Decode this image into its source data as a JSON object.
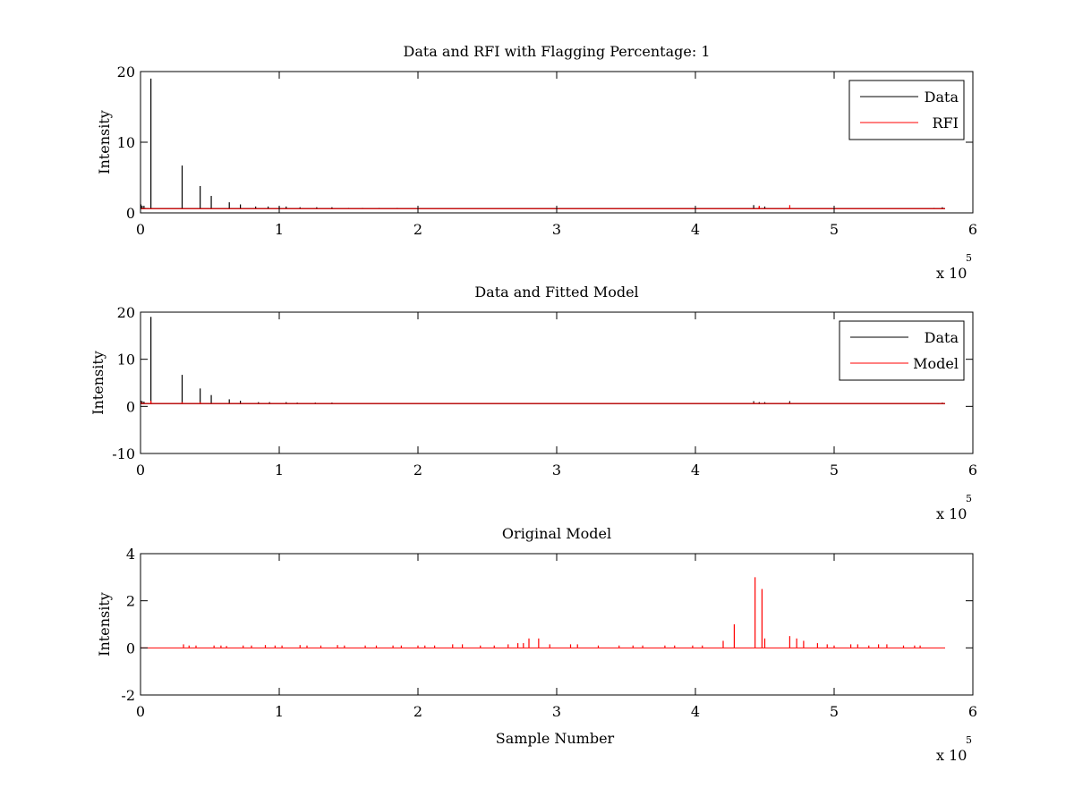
{
  "chart_data": [
    {
      "type": "line",
      "title": "Data and RFI with Flagging Percentage: 1",
      "xlabel": "",
      "ylabel": "Intensity",
      "xlim": [
        0,
        6
      ],
      "ylim": [
        0,
        20
      ],
      "xticks": [
        0,
        1,
        2,
        3,
        4,
        5,
        6
      ],
      "yticks": [
        0,
        10,
        20
      ],
      "x_multiplier": {
        "base": "x 10",
        "exponent": "5"
      },
      "legend": {
        "placement": "top-right",
        "entries": [
          "Data",
          "RFI"
        ]
      },
      "grid": false,
      "baseline": 0.6,
      "series": [
        {
          "name": "Data",
          "color": "#000000",
          "spikes": [
            [
              0.003,
              1.2
            ],
            [
              0.012,
              1.0
            ],
            [
              0.025,
              1.0
            ],
            [
              0.035,
              0.7
            ],
            [
              0.075,
              19.0
            ],
            [
              0.3,
              6.7
            ],
            [
              0.43,
              3.8
            ],
            [
              0.51,
              2.4
            ],
            [
              0.64,
              1.5
            ],
            [
              0.72,
              1.2
            ],
            [
              0.83,
              0.9
            ],
            [
              0.92,
              0.9
            ],
            [
              1.0,
              0.9
            ],
            [
              1.05,
              0.9
            ],
            [
              1.15,
              0.8
            ],
            [
              1.27,
              0.8
            ],
            [
              1.38,
              0.8
            ],
            [
              1.5,
              0.7
            ],
            [
              1.6,
              0.7
            ],
            [
              1.72,
              0.7
            ],
            [
              1.85,
              0.7
            ],
            [
              4.42,
              1.1
            ],
            [
              4.46,
              0.9
            ],
            [
              4.5,
              0.9
            ],
            [
              5.72,
              0.7
            ],
            [
              5.78,
              0.8
            ]
          ]
        },
        {
          "name": "RFI",
          "color": "#ff0000",
          "spikes": [
            [
              4.46,
              1.0
            ],
            [
              4.68,
              1.1
            ]
          ]
        }
      ]
    },
    {
      "type": "line",
      "title": "Data and Fitted Model",
      "xlabel": "",
      "ylabel": "Intensity",
      "xlim": [
        0,
        6
      ],
      "ylim": [
        -10,
        20
      ],
      "xticks": [
        0,
        1,
        2,
        3,
        4,
        5,
        6
      ],
      "yticks": [
        -10,
        0,
        10,
        20
      ],
      "x_multiplier": {
        "base": "x 10",
        "exponent": "5"
      },
      "legend": {
        "placement": "top-right",
        "entries": [
          "Data",
          "Model"
        ]
      },
      "grid": false,
      "baseline": 0.6,
      "series": [
        {
          "name": "Data",
          "color": "#000000",
          "spikes": [
            [
              0.003,
              1.2
            ],
            [
              0.012,
              1.1
            ],
            [
              0.025,
              1.0
            ],
            [
              0.075,
              19.0
            ],
            [
              0.3,
              6.7
            ],
            [
              0.43,
              3.8
            ],
            [
              0.51,
              2.4
            ],
            [
              0.64,
              1.5
            ],
            [
              0.72,
              1.2
            ],
            [
              0.85,
              0.9
            ],
            [
              0.93,
              0.9
            ],
            [
              1.05,
              0.9
            ],
            [
              1.13,
              0.8
            ],
            [
              1.26,
              0.8
            ],
            [
              1.38,
              0.8
            ],
            [
              1.6,
              0.7
            ],
            [
              4.42,
              1.1
            ],
            [
              4.46,
              0.9
            ],
            [
              4.5,
              0.9
            ],
            [
              4.68,
              1.1
            ],
            [
              5.75,
              0.5
            ],
            [
              5.78,
              0.8
            ]
          ]
        },
        {
          "name": "Model",
          "color": "#ff0000",
          "spikes": [
            [
              0.003,
              1.0
            ],
            [
              0.075,
              1.2
            ],
            [
              0.3,
              0.9
            ],
            [
              0.43,
              0.9
            ],
            [
              4.42,
              0.8
            ],
            [
              4.68,
              0.8
            ],
            [
              5.78,
              0.7
            ]
          ]
        }
      ]
    },
    {
      "type": "line",
      "title": "Original Model",
      "xlabel": "Sample Number",
      "ylabel": "Intensity",
      "xlim": [
        0,
        6
      ],
      "ylim": [
        -2,
        4
      ],
      "xticks": [
        0,
        1,
        2,
        3,
        4,
        5,
        6
      ],
      "yticks": [
        -2,
        0,
        2,
        4
      ],
      "x_multiplier": {
        "base": "x 10",
        "exponent": "5"
      },
      "legend": null,
      "grid": false,
      "baseline": 0,
      "series": [
        {
          "name": "",
          "color": "#ff0000",
          "spikes": [
            [
              0.31,
              0.15
            ],
            [
              0.35,
              0.1
            ],
            [
              0.4,
              0.1
            ],
            [
              0.53,
              0.1
            ],
            [
              0.58,
              0.1
            ],
            [
              0.62,
              0.08
            ],
            [
              0.74,
              0.1
            ],
            [
              0.8,
              0.1
            ],
            [
              0.9,
              0.12
            ],
            [
              0.97,
              0.1
            ],
            [
              1.02,
              0.1
            ],
            [
              1.15,
              0.12
            ],
            [
              1.2,
              0.1
            ],
            [
              1.3,
              0.1
            ],
            [
              1.42,
              0.12
            ],
            [
              1.47,
              0.1
            ],
            [
              1.62,
              0.1
            ],
            [
              1.7,
              0.1
            ],
            [
              1.82,
              0.1
            ],
            [
              1.88,
              0.1
            ],
            [
              2.0,
              0.1
            ],
            [
              2.05,
              0.1
            ],
            [
              2.12,
              0.1
            ],
            [
              2.25,
              0.15
            ],
            [
              2.32,
              0.15
            ],
            [
              2.45,
              0.1
            ],
            [
              2.55,
              0.1
            ],
            [
              2.65,
              0.15
            ],
            [
              2.72,
              0.2
            ],
            [
              2.76,
              0.2
            ],
            [
              2.8,
              0.4
            ],
            [
              2.87,
              0.4
            ],
            [
              2.95,
              0.15
            ],
            [
              3.1,
              0.15
            ],
            [
              3.15,
              0.15
            ],
            [
              3.3,
              0.1
            ],
            [
              3.45,
              0.1
            ],
            [
              3.55,
              0.1
            ],
            [
              3.62,
              0.1
            ],
            [
              3.78,
              0.1
            ],
            [
              3.85,
              0.1
            ],
            [
              3.98,
              0.1
            ],
            [
              4.05,
              0.1
            ],
            [
              4.2,
              0.3
            ],
            [
              4.28,
              1.0
            ],
            [
              4.43,
              3.0
            ],
            [
              4.48,
              2.5
            ],
            [
              4.5,
              0.4
            ],
            [
              4.68,
              0.5
            ],
            [
              4.73,
              0.4
            ],
            [
              4.78,
              0.3
            ],
            [
              4.88,
              0.2
            ],
            [
              4.95,
              0.15
            ],
            [
              5.0,
              0.1
            ],
            [
              5.12,
              0.15
            ],
            [
              5.17,
              0.15
            ],
            [
              5.25,
              0.1
            ],
            [
              5.32,
              0.15
            ],
            [
              5.38,
              0.15
            ],
            [
              5.5,
              0.1
            ],
            [
              5.58,
              0.1
            ],
            [
              5.62,
              0.1
            ]
          ]
        }
      ]
    }
  ]
}
